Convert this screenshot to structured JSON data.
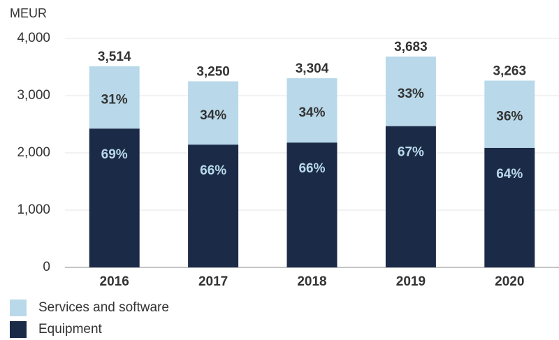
{
  "chart_data": {
    "type": "stacked-bar",
    "y_unit": "MEUR",
    "categories": [
      "2016",
      "2017",
      "2018",
      "2019",
      "2020"
    ],
    "series": [
      {
        "name": "Equipment",
        "color": "#1b2a47",
        "values": [
          2425,
          2145,
          2181,
          2468,
          2088
        ],
        "share_labels": [
          "69%",
          "66%",
          "66%",
          "67%",
          "64%"
        ]
      },
      {
        "name": "Services and software",
        "color": "#b9d9ea",
        "values": [
          1089,
          1105,
          1123,
          1215,
          1175
        ],
        "share_labels": [
          "31%",
          "34%",
          "34%",
          "33%",
          "36%"
        ]
      }
    ],
    "totals": [
      3514,
      3250,
      3304,
      3683,
      3263
    ],
    "total_labels": [
      "3,514",
      "3,250",
      "3,304",
      "3,683",
      "3,263"
    ],
    "ylim": [
      0,
      4000
    ],
    "yticks": [
      0,
      {
        "value": 1000,
        "label": "1,000"
      },
      {
        "value": 2000,
        "label": "2,000"
      },
      {
        "value": 3000,
        "label": "3,000"
      },
      {
        "value": 4000,
        "label": "4,000"
      }
    ],
    "grid": true
  }
}
